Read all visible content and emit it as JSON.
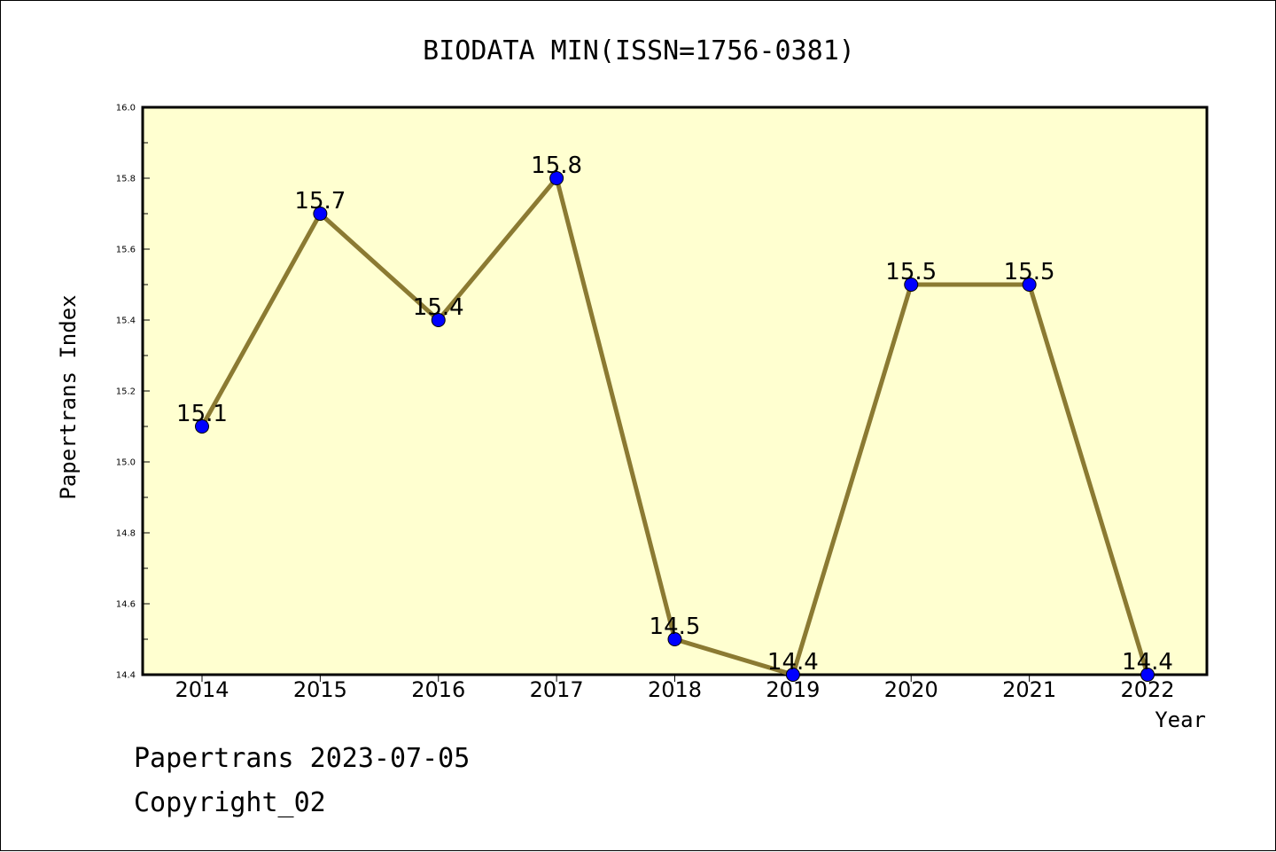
{
  "chart_data": {
    "type": "line",
    "title": "BIODATA MIN(ISSN=1756-0381)",
    "xlabel": "Year",
    "ylabel": "Papertrans Index",
    "categories": [
      "2014",
      "2015",
      "2016",
      "2017",
      "2018",
      "2019",
      "2020",
      "2021",
      "2022"
    ],
    "values": [
      15.1,
      15.7,
      15.4,
      15.8,
      14.5,
      14.4,
      15.5,
      15.5,
      14.4
    ],
    "data_labels": [
      "15.1",
      "15.7",
      "15.4",
      "15.8",
      "14.5",
      "14.4",
      "15.5",
      "15.5",
      "14.4"
    ],
    "ylim": [
      14.4,
      16.0
    ],
    "yticks": [
      "14.4",
      "14.6",
      "14.8",
      "15.0",
      "15.2",
      "15.4",
      "15.6",
      "15.8",
      "16.0"
    ],
    "grid": false,
    "legend": "none",
    "colors": {
      "line": "#8b7a32",
      "marker": "#0000ff",
      "plot_background": "#ffffd0"
    }
  },
  "footer": {
    "line1": "Papertrans 2023-07-05",
    "line2": "Copyright_02"
  }
}
